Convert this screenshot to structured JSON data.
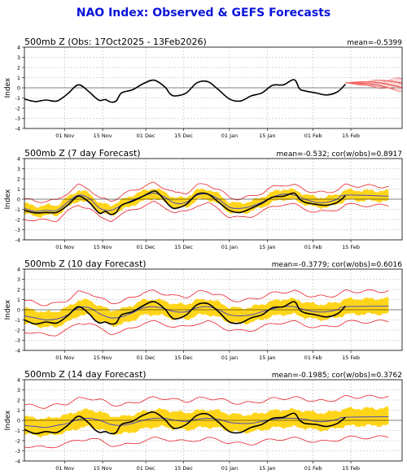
{
  "title": "NAO Index: Observed & GEFS Forecasts",
  "colors": {
    "title": "#0a14d8",
    "observed": "#000000",
    "ensemble_mean": "#4a4ab8",
    "spread_band": "#ffd51a",
    "envelope": "#e8202a",
    "members": "#f06060",
    "grid": "#b0b0b0"
  },
  "chart_data": [
    {
      "type": "line",
      "title": "500mb Z (Obs: 17Oct2025 - 13Feb2026)",
      "stat": "mean=-0.5399",
      "ylabel": "Index",
      "ylim": [
        -4,
        4
      ],
      "yticks": [
        -4,
        -3,
        -2,
        -1,
        0,
        1,
        2,
        3,
        4
      ],
      "xtick_labels": [
        "01 Nov",
        "15 Nov",
        "01 Dec",
        "15 Dec",
        "01 Jan",
        "15 Jan",
        "01 Feb",
        "15 Feb"
      ],
      "xtick_days": [
        15,
        29,
        45,
        59,
        76,
        90,
        107,
        121
      ],
      "xlim_days": [
        0,
        140
      ],
      "observed": {
        "days": [
          0,
          4,
          8,
          12,
          16,
          20,
          24,
          26,
          28,
          30,
          32,
          34,
          36,
          40,
          44,
          48,
          52,
          54,
          56,
          60,
          64,
          68,
          72,
          76,
          80,
          84,
          88,
          92,
          96,
          100,
          102,
          104,
          108,
          112,
          116,
          119
        ],
        "values": [
          -1.1,
          -1.35,
          -1.2,
          -1.3,
          -0.6,
          0.3,
          -0.4,
          -0.9,
          -1.25,
          -1.15,
          -1.4,
          -1.3,
          -0.5,
          -0.2,
          0.4,
          0.75,
          0.1,
          -0.6,
          -0.8,
          -0.5,
          0.5,
          0.6,
          -0.2,
          -1.1,
          -1.3,
          -0.8,
          -0.5,
          0.25,
          0.3,
          0.8,
          -0.1,
          -0.3,
          -0.5,
          -0.7,
          -0.4,
          0.35
        ]
      },
      "forecast_members": {
        "start_day": 119,
        "end_day": 140,
        "start_value": 0.5,
        "end_range": [
          -0.3,
          0.9
        ]
      }
    },
    {
      "type": "line",
      "title": "500mb Z (7 day Forecast)",
      "stat": "mean=-0.532; cor(w/obs)=0.8917",
      "ylabel": "Index",
      "ylim": [
        -4,
        4
      ],
      "yticks": [
        -4,
        -3,
        -2,
        -1,
        0,
        1,
        2,
        3,
        4
      ],
      "xtick_labels": [
        "01 Nov",
        "15 Nov",
        "01 Dec",
        "15 Dec",
        "01 Jan",
        "15 Jan",
        "01 Feb",
        "15 Feb"
      ],
      "xtick_days": [
        15,
        29,
        45,
        59,
        76,
        90,
        107,
        121
      ],
      "xlim_days": [
        0,
        140
      ],
      "observed": {
        "days": [
          0,
          4,
          8,
          12,
          16,
          20,
          24,
          26,
          28,
          30,
          32,
          34,
          36,
          40,
          44,
          48,
          50,
          52,
          54,
          56,
          60,
          64,
          68,
          72,
          76,
          80,
          84,
          88,
          92,
          96,
          100,
          102,
          104,
          108,
          112,
          116,
          119
        ],
        "values": [
          -1.1,
          -1.35,
          -1.3,
          -1.3,
          -0.6,
          0.3,
          -0.3,
          -0.9,
          -1.4,
          -1.2,
          -1.5,
          -1.3,
          -0.6,
          -0.2,
          0.3,
          0.8,
          0.5,
          -0.1,
          -0.7,
          -0.9,
          -0.5,
          0.5,
          0.5,
          -0.3,
          -1.1,
          -1.3,
          -0.9,
          -0.4,
          0.2,
          0.3,
          0.6,
          0.0,
          -0.3,
          -0.5,
          -0.6,
          -0.3,
          0.35
        ]
      },
      "ensemble_mean": {
        "days": [
          0,
          4,
          8,
          12,
          16,
          20,
          24,
          28,
          32,
          36,
          40,
          44,
          48,
          52,
          56,
          60,
          64,
          68,
          72,
          76,
          80,
          84,
          88,
          92,
          96,
          100,
          104,
          108,
          112,
          116,
          119,
          135
        ],
        "values": [
          -0.9,
          -1.2,
          -1.1,
          -1.1,
          -0.3,
          0.4,
          0.1,
          -0.9,
          -1.1,
          -0.6,
          -0.1,
          0.3,
          0.6,
          0.2,
          -0.4,
          -0.3,
          0.4,
          0.5,
          0.0,
          -0.8,
          -0.9,
          -0.7,
          -0.3,
          0.2,
          0.5,
          0.4,
          0.0,
          -0.3,
          -0.3,
          0.0,
          0.4,
          0.3
        ]
      },
      "spread_halfwidth": 0.5,
      "envelope_halfwidth": 0.95
    },
    {
      "type": "line",
      "title": "500mb Z (10 day Forecast)",
      "stat": "mean=-0.3779; cor(w/obs)=0.6016",
      "ylabel": "Index",
      "ylim": [
        -4,
        4
      ],
      "yticks": [
        -4,
        -3,
        -2,
        -1,
        0,
        1,
        2,
        3,
        4
      ],
      "xtick_labels": [
        "01 Nov",
        "15 Nov",
        "01 Dec",
        "15 Dec",
        "01 Jan",
        "15 Jan",
        "01 Feb",
        "15 Feb"
      ],
      "xtick_days": [
        15,
        29,
        45,
        59,
        76,
        90,
        107,
        121
      ],
      "xlim_days": [
        0,
        140
      ],
      "observed": {
        "days": [
          0,
          4,
          8,
          12,
          16,
          20,
          24,
          26,
          28,
          30,
          32,
          34,
          36,
          40,
          44,
          48,
          52,
          54,
          56,
          60,
          64,
          68,
          72,
          76,
          80,
          84,
          88,
          92,
          96,
          100,
          102,
          104,
          108,
          112,
          116,
          119
        ],
        "values": [
          -1.0,
          -1.4,
          -1.2,
          -1.3,
          -0.6,
          0.3,
          -0.4,
          -1.0,
          -1.3,
          -1.2,
          -1.4,
          -1.3,
          -0.5,
          -0.2,
          0.4,
          0.8,
          0.1,
          -0.6,
          -0.9,
          -0.5,
          0.5,
          0.6,
          -0.2,
          -1.2,
          -1.3,
          -0.8,
          -0.5,
          0.2,
          0.3,
          0.8,
          0.0,
          -0.3,
          -0.5,
          -0.7,
          -0.4,
          0.35
        ]
      },
      "ensemble_mean": {
        "days": [
          0,
          4,
          8,
          12,
          16,
          20,
          24,
          28,
          32,
          36,
          40,
          44,
          48,
          52,
          56,
          60,
          64,
          68,
          72,
          76,
          80,
          84,
          88,
          92,
          96,
          100,
          104,
          108,
          112,
          116,
          119,
          135
        ],
        "values": [
          -0.6,
          -0.8,
          -1.0,
          -0.9,
          -0.5,
          0.2,
          0.2,
          -0.4,
          -0.8,
          -0.7,
          -0.3,
          0.2,
          0.3,
          0.1,
          -0.2,
          -0.2,
          0.2,
          0.3,
          0.0,
          -0.5,
          -0.6,
          -0.5,
          -0.2,
          0.1,
          0.3,
          0.3,
          0.0,
          -0.2,
          -0.2,
          0.0,
          0.3,
          0.35
        ]
      },
      "spread_halfwidth": 0.75,
      "envelope_halfwidth": 1.5
    },
    {
      "type": "line",
      "title": "500mb Z (14 day Forecast)",
      "stat": "mean=-0.1985; cor(w/obs)=0.3762",
      "ylabel": "Index",
      "ylim": [
        -4,
        4
      ],
      "yticks": [
        -4,
        -3,
        -2,
        -1,
        0,
        1,
        2,
        3,
        4
      ],
      "xtick_labels": [
        "01 Nov",
        "15 Nov",
        "01 Dec",
        "15 Dec",
        "01 Jan",
        "15 Jan",
        "01 Feb",
        "15 Feb"
      ],
      "xtick_days": [
        15,
        29,
        45,
        59,
        76,
        90,
        107,
        121
      ],
      "xlim_days": [
        0,
        140
      ],
      "observed": {
        "days": [
          0,
          4,
          8,
          12,
          16,
          20,
          24,
          26,
          28,
          30,
          32,
          34,
          36,
          40,
          44,
          48,
          52,
          54,
          56,
          60,
          64,
          68,
          72,
          76,
          80,
          84,
          88,
          92,
          96,
          100,
          102,
          104,
          108,
          112,
          116,
          119
        ],
        "values": [
          -0.9,
          -1.3,
          -1.1,
          -1.2,
          -0.5,
          0.4,
          -0.3,
          -0.9,
          -1.2,
          -1.1,
          -1.3,
          -1.2,
          -0.4,
          -0.1,
          0.5,
          0.8,
          0.1,
          -0.5,
          -0.8,
          -0.4,
          0.5,
          0.6,
          -0.2,
          -1.1,
          -1.2,
          -0.7,
          -0.4,
          0.2,
          0.3,
          0.7,
          0.0,
          -0.3,
          -0.4,
          -0.6,
          -0.3,
          0.3
        ]
      },
      "ensemble_mean": {
        "days": [
          0,
          4,
          8,
          12,
          16,
          20,
          24,
          28,
          32,
          36,
          40,
          44,
          48,
          52,
          56,
          60,
          64,
          68,
          72,
          76,
          80,
          84,
          88,
          92,
          96,
          100,
          104,
          108,
          112,
          116,
          119,
          135
        ],
        "values": [
          -0.5,
          -0.6,
          -0.7,
          -0.5,
          -0.3,
          0.1,
          0.2,
          0.0,
          -0.4,
          -0.5,
          -0.3,
          0.0,
          0.2,
          0.2,
          0.0,
          -0.1,
          0.1,
          0.2,
          0.1,
          -0.2,
          -0.3,
          -0.3,
          -0.1,
          0.1,
          0.2,
          0.2,
          0.1,
          -0.1,
          -0.1,
          0.1,
          0.3,
          0.35
        ]
      },
      "spread_halfwidth": 0.85,
      "envelope_halfwidth": 2.0
    }
  ]
}
